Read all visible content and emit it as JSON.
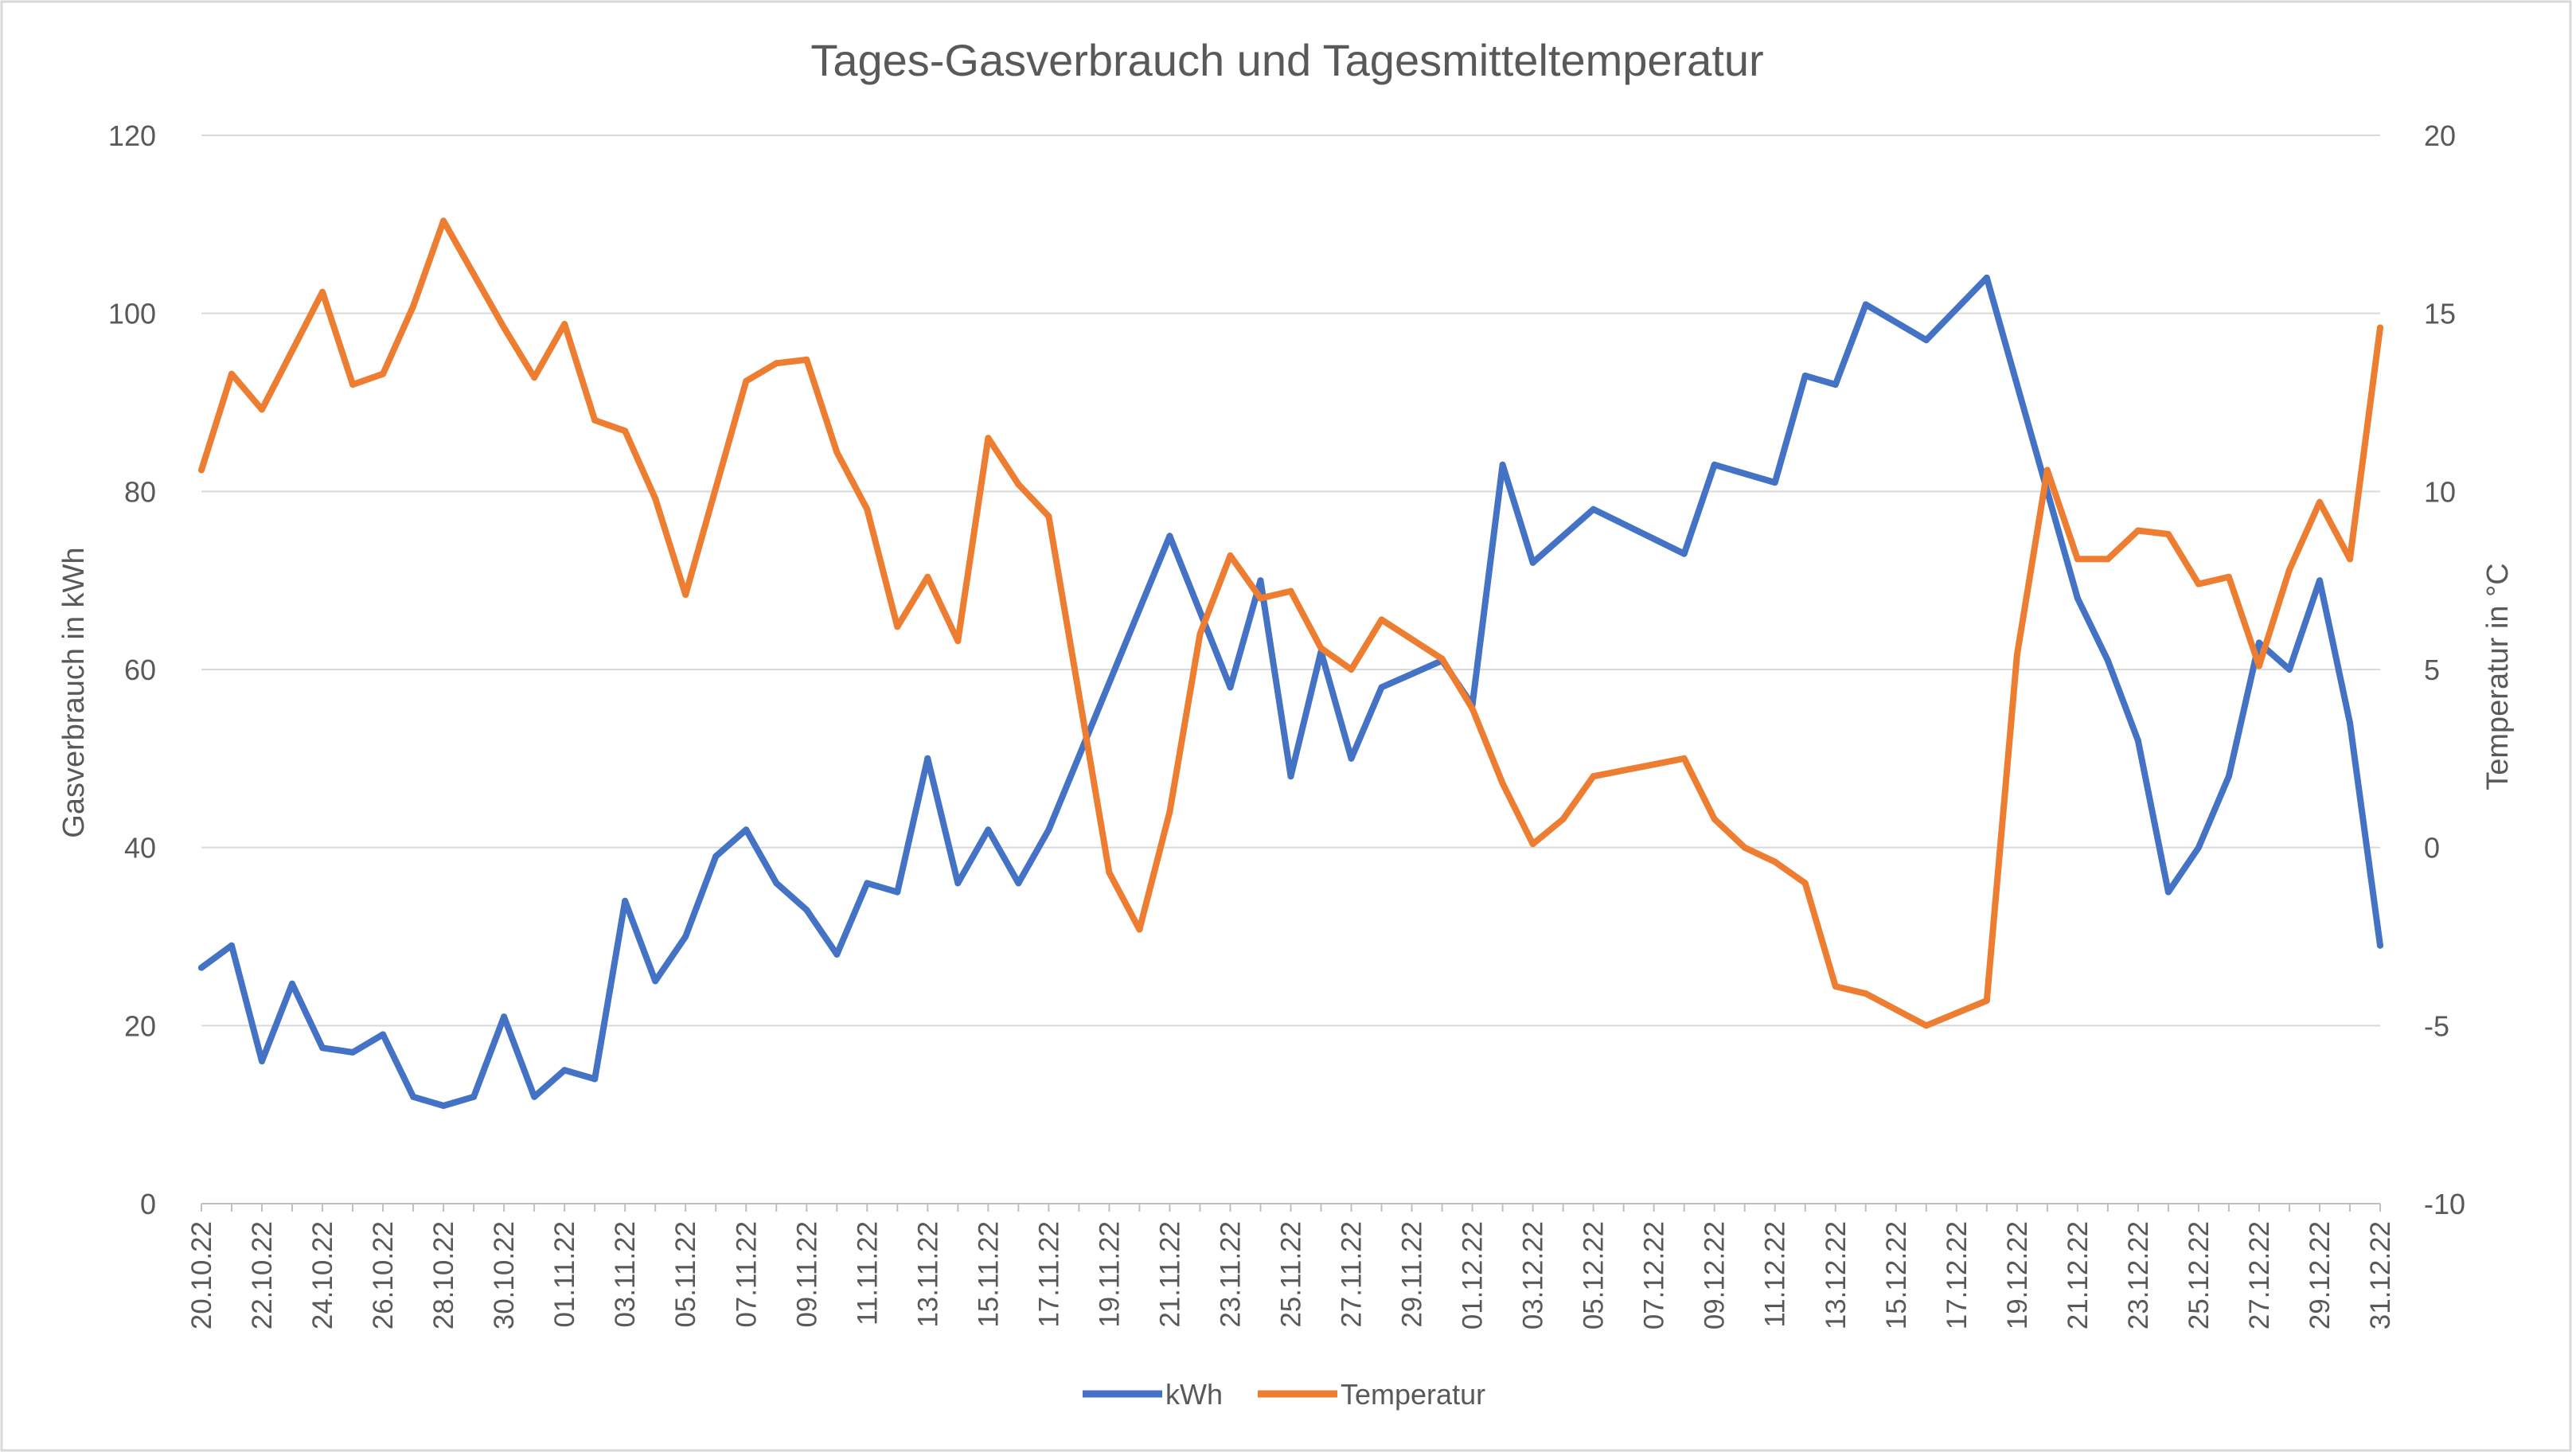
{
  "chart_data": {
    "type": "line",
    "title": "Tages-Gasverbrauch und Tagesmitteltemperatur",
    "ylabel": "Gasverbrauch in kWh",
    "y2label": "Temperatur in °C",
    "ylim": [
      0,
      120
    ],
    "y2lim": [
      -10,
      20
    ],
    "yticks": [
      0,
      20,
      40,
      60,
      80,
      100,
      120
    ],
    "y2ticks": [
      -10,
      -5,
      0,
      5,
      10,
      15,
      20
    ],
    "xtick_labels": [
      "20.10.22",
      "22.10.22",
      "24.10.22",
      "26.10.22",
      "28.10.22",
      "30.10.22",
      "01.11.22",
      "03.11.22",
      "05.11.22",
      "07.11.22",
      "09.11.22",
      "11.11.22",
      "13.11.22",
      "15.11.22",
      "17.11.22",
      "19.11.22",
      "21.11.22",
      "23.11.22",
      "25.11.22",
      "27.11.22",
      "29.11.22",
      "01.12.22",
      "03.12.22",
      "05.12.22",
      "07.12.22",
      "09.12.22",
      "11.12.22",
      "13.12.22",
      "15.12.22",
      "17.12.22",
      "19.12.22",
      "21.12.22",
      "23.12.22",
      "25.12.22",
      "27.12.22",
      "29.12.22",
      "31.12.22"
    ],
    "grid": true,
    "legend": "bottom",
    "series": [
      {
        "name": "kWh",
        "axis": "left",
        "color": "#4472C4",
        "x": [
          "20.10.22",
          "21.10.22",
          "22.10.22",
          "23.10.22",
          "24.10.22",
          "25.10.22",
          "26.10.22",
          "27.10.22",
          "28.10.22",
          "29.10.22",
          "30.10.22",
          "31.10.22",
          "01.11.22",
          "02.11.22",
          "03.11.22",
          "04.11.22",
          "05.11.22",
          "06.11.22",
          "07.11.22",
          "08.11.22",
          "09.11.22",
          "10.11.22",
          "11.11.22",
          "12.11.22",
          "13.11.22",
          "14.11.22",
          "15.11.22",
          "16.11.22",
          "17.11.22",
          "21.11.22",
          "23.11.22",
          "24.11.22",
          "25.11.22",
          "26.11.22",
          "27.11.22",
          "28.11.22",
          "30.11.22",
          "01.12.22",
          "02.12.22",
          "03.12.22",
          "05.12.22",
          "08.12.22",
          "09.12.22",
          "10.12.22",
          "11.12.22",
          "12.12.22",
          "13.12.22",
          "14.12.22",
          "16.12.22",
          "18.12.22",
          "21.12.22",
          "22.12.22",
          "23.12.22",
          "24.12.22",
          "25.12.22",
          "26.12.22",
          "27.12.22",
          "28.12.22",
          "29.12.22",
          "30.12.22",
          "31.12.22"
        ],
        "values": [
          26.5,
          29,
          16,
          24.7,
          17.5,
          17,
          19,
          12,
          11,
          12,
          21,
          12,
          15,
          14,
          34,
          25,
          30,
          39,
          42,
          36,
          33,
          28,
          36,
          35,
          50,
          36,
          42,
          36,
          42,
          75,
          58,
          70,
          48,
          62,
          50,
          58,
          61,
          56,
          83,
          72,
          78,
          73,
          83,
          82,
          81,
          93,
          92,
          101,
          97,
          104,
          68,
          61,
          52,
          35,
          40,
          48,
          63,
          60,
          70,
          54,
          29
        ]
      },
      {
        "name": "Temperatur",
        "axis": "right",
        "color": "#ED7D31",
        "x": [
          "20.10.22",
          "21.10.22",
          "22.10.22",
          "24.10.22",
          "25.10.22",
          "26.10.22",
          "27.10.22",
          "28.10.22",
          "30.10.22",
          "31.10.22",
          "01.11.22",
          "02.11.22",
          "03.11.22",
          "04.11.22",
          "05.11.22",
          "07.11.22",
          "08.11.22",
          "09.11.22",
          "10.11.22",
          "11.11.22",
          "12.11.22",
          "13.11.22",
          "14.11.22",
          "15.11.22",
          "16.11.22",
          "17.11.22",
          "19.11.22",
          "20.11.22",
          "21.11.22",
          "22.11.22",
          "23.11.22",
          "24.11.22",
          "25.11.22",
          "26.11.22",
          "27.11.22",
          "28.11.22",
          "30.11.22",
          "01.12.22",
          "02.12.22",
          "03.12.22",
          "04.12.22",
          "05.12.22",
          "08.12.22",
          "09.12.22",
          "10.12.22",
          "11.12.22",
          "12.12.22",
          "13.12.22",
          "14.12.22",
          "16.12.22",
          "18.12.22",
          "19.12.22",
          "20.12.22",
          "21.12.22",
          "22.12.22",
          "23.12.22",
          "24.12.22",
          "25.12.22",
          "26.12.22",
          "27.12.22",
          "28.12.22",
          "29.12.22",
          "30.12.22",
          "31.12.22"
        ],
        "values": [
          10.6,
          13.3,
          12.3,
          15.6,
          13.0,
          13.3,
          15.2,
          17.6,
          14.6,
          13.2,
          14.7,
          12.0,
          11.7,
          9.8,
          7.1,
          13.1,
          13.6,
          13.7,
          11.1,
          9.5,
          6.2,
          7.6,
          5.8,
          11.5,
          10.2,
          9.3,
          -0.7,
          -2.3,
          1.0,
          6.0,
          8.2,
          7.0,
          7.2,
          5.6,
          5.0,
          6.4,
          5.3,
          3.9,
          1.8,
          0.1,
          0.8,
          2.0,
          2.5,
          0.8,
          0.0,
          -0.4,
          -1.0,
          -3.9,
          -4.1,
          -5.0,
          -4.3,
          5.4,
          10.6,
          8.1,
          8.1,
          8.9,
          8.8,
          7.4,
          7.6,
          5.1,
          7.8,
          9.7,
          8.1,
          14.6
        ]
      }
    ]
  }
}
